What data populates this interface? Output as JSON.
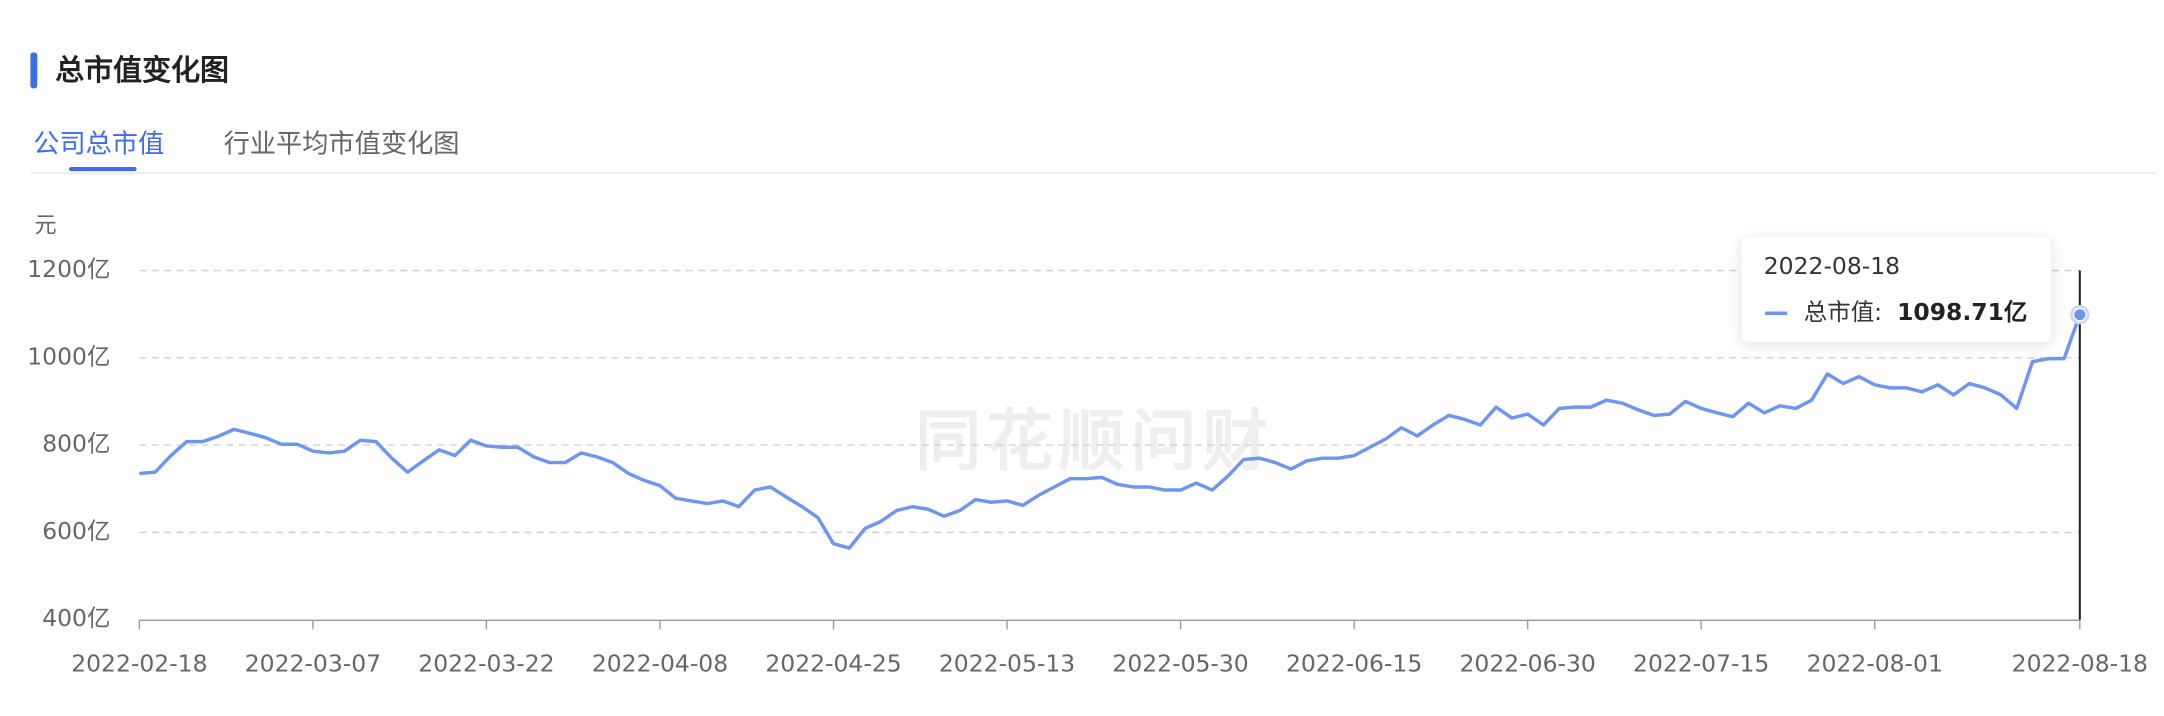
{
  "chart_data": {
    "type": "line",
    "title": "总市值变化图",
    "tabs": [
      "公司总市值",
      "行业平均市值变化图"
    ],
    "y_unit": "元",
    "watermark": "同花顺问财",
    "color": "#6e95f0",
    "categories": [
      "2022-02-18",
      null,
      null,
      null,
      null,
      null,
      null,
      null,
      null,
      null,
      null,
      "2022-03-07",
      null,
      null,
      null,
      null,
      null,
      null,
      null,
      null,
      null,
      null,
      "2022-03-22",
      null,
      null,
      null,
      null,
      null,
      null,
      null,
      null,
      null,
      null,
      "2022-04-08",
      null,
      null,
      null,
      null,
      null,
      null,
      null,
      null,
      null,
      null,
      "2022-04-25",
      null,
      null,
      null,
      null,
      null,
      null,
      null,
      null,
      null,
      null,
      "2022-05-13",
      null,
      null,
      null,
      null,
      null,
      null,
      null,
      null,
      null,
      null,
      "2022-05-30",
      null,
      null,
      null,
      null,
      null,
      null,
      null,
      null,
      null,
      null,
      "2022-06-15",
      null,
      null,
      null,
      null,
      null,
      null,
      null,
      null,
      null,
      null,
      "2022-06-30",
      null,
      null,
      null,
      null,
      null,
      null,
      null,
      null,
      null,
      null,
      "2022-07-15",
      null,
      null,
      null,
      null,
      null,
      null,
      null,
      null,
      null,
      null,
      "2022-08-01",
      null,
      null,
      null,
      null,
      null,
      null,
      null,
      null,
      null,
      null,
      null,
      null,
      "2022-08-18"
    ],
    "values": [
      735,
      738,
      776,
      808,
      808,
      820,
      836,
      827,
      817,
      802,
      802,
      786,
      782,
      786,
      811,
      808,
      770,
      738,
      764,
      789,
      776,
      811,
      798,
      795,
      795,
      773,
      760,
      760,
      782,
      773,
      760,
      735,
      719,
      707,
      678,
      672,
      666,
      672,
      659,
      697,
      704,
      681,
      659,
      634,
      574,
      564,
      609,
      625,
      650,
      659,
      653,
      637,
      650,
      675,
      669,
      672,
      662,
      685,
      704,
      723,
      723,
      726,
      710,
      704,
      704,
      697,
      697,
      713,
      697,
      729,
      767,
      770,
      760,
      745,
      764,
      770,
      770,
      776,
      795,
      814,
      840,
      821,
      846,
      868,
      859,
      846,
      887,
      862,
      871,
      846,
      884,
      887,
      887,
      903,
      896,
      881,
      868,
      871,
      900,
      884,
      874,
      865,
      896,
      874,
      890,
      884,
      903,
      963,
      941,
      957,
      938,
      931,
      931,
      922,
      938,
      915,
      941,
      931,
      915,
      884,
      991,
      998,
      998,
      1098.71
    ],
    "ylim": [
      400,
      1200
    ],
    "yticks": [
      {
        "value": 400,
        "label": "400亿"
      },
      {
        "value": 600,
        "label": "600亿"
      },
      {
        "value": 800,
        "label": "800亿"
      },
      {
        "value": 1000,
        "label": "1000亿"
      },
      {
        "value": 1200,
        "label": "1200亿"
      }
    ],
    "grid": true,
    "tooltip": {
      "label": "总市值:",
      "value_label": "1098.71亿"
    }
  }
}
